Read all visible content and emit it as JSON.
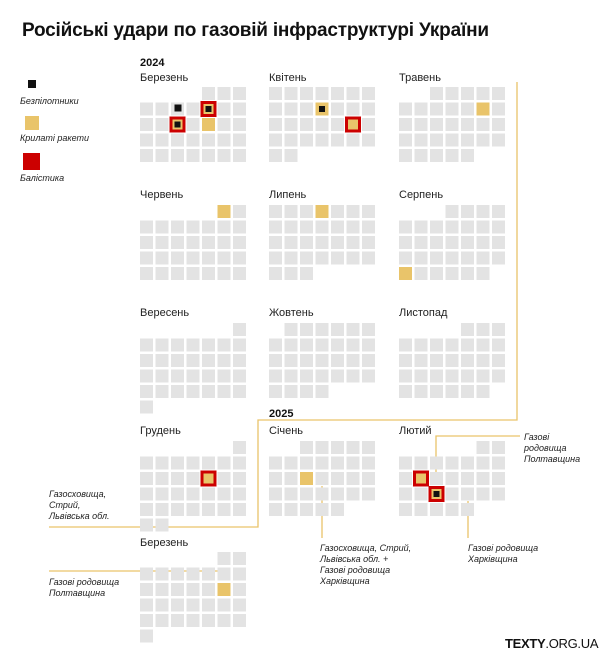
{
  "title": "Російські удари по газовій інфраструктурі України",
  "brand": {
    "bold": "TEXTY",
    "rest": ".ORG.UA"
  },
  "colors": {
    "empty": "#e3e3e3",
    "drone": "#111111",
    "cruise": "#e9c46a",
    "ballistic": "#cc0000",
    "line": "#e9c46a"
  },
  "legend": [
    {
      "type": "drone",
      "label": "Безпілотники"
    },
    {
      "type": "cruise",
      "label": "Крилаті ракети"
    },
    {
      "type": "ballistic",
      "label": "Балістика"
    }
  ],
  "years": [
    "2024",
    "2025"
  ],
  "chart_data": {
    "type": "calendar-grid",
    "title": "Російські удари по газовій інфраструктурі України",
    "months": [
      {
        "label": "Березень",
        "year": 2024,
        "start_weekday": 5,
        "days": 31,
        "events": [
          {
            "day": 8,
            "types": [
              "cruise",
              "ballistic",
              "drone"
            ]
          },
          {
            "day": 13,
            "types": [
              "ballistic",
              "drone"
            ]
          },
          {
            "day": 15,
            "types": [
              "cruise"
            ]
          }
        ]
      },
      {
        "label": "Квітень",
        "year": 2024,
        "start_weekday": 1,
        "days": 30,
        "events": [
          {
            "day": 11,
            "types": [
              "cruise",
              "drone"
            ]
          },
          {
            "day": 20,
            "types": [
              "cruise",
              "ballistic"
            ]
          }
        ]
      },
      {
        "label": "Травень",
        "year": 2024,
        "start_weekday": 3,
        "days": 31,
        "events": [
          {
            "day": 11,
            "types": [
              "cruise"
            ]
          }
        ]
      },
      {
        "label": "Червень",
        "year": 2024,
        "start_weekday": 6,
        "days": 30,
        "events": [
          {
            "day": 1,
            "types": [
              "cruise"
            ]
          }
        ]
      },
      {
        "label": "Липень",
        "year": 2024,
        "start_weekday": 1,
        "days": 31,
        "events": [
          {
            "day": 4,
            "types": [
              "cruise"
            ]
          }
        ]
      },
      {
        "label": "Серпень",
        "year": 2024,
        "start_weekday": 4,
        "days": 31,
        "events": [
          {
            "day": 26,
            "types": [
              "cruise"
            ]
          }
        ]
      },
      {
        "label": "Вересень",
        "year": 2024,
        "start_weekday": 7,
        "days": 30,
        "events": []
      },
      {
        "label": "Жовтень",
        "year": 2024,
        "start_weekday": 2,
        "days": 31,
        "events": []
      },
      {
        "label": "Листопад",
        "year": 2024,
        "start_weekday": 5,
        "days": 30,
        "events": []
      },
      {
        "label": "Грудень",
        "year": 2024,
        "start_weekday": 7,
        "days": 31,
        "events": [
          {
            "day": 13,
            "types": [
              "cruise",
              "ballistic"
            ]
          }
        ]
      },
      {
        "label": "Січень",
        "year": 2025,
        "start_weekday": 3,
        "days": 31,
        "events": [
          {
            "day": 15,
            "types": [
              "cruise"
            ]
          }
        ]
      },
      {
        "label": "Лютий",
        "year": 2025,
        "start_weekday": 6,
        "days": 28,
        "events": [
          {
            "day": 11,
            "types": [
              "cruise",
              "ballistic"
            ]
          },
          {
            "day": 19,
            "types": [
              "ballistic",
              "drone"
            ]
          }
        ]
      },
      {
        "label": "Березень",
        "year": 2025,
        "start_weekday": 6,
        "days": 31,
        "events": [
          {
            "day": 15,
            "types": [
              "cruise"
            ]
          }
        ]
      }
    ],
    "annotations": [
      {
        "text": "Газосховища,\nСтрий,\nЛьвівська обл.",
        "target": "Грудень 2024, 13"
      },
      {
        "text": "Газосховища, Стрий,\nЛьвівська обл. +\nГазові родовища\nХарківщина",
        "target": "Січень 2025, 15"
      },
      {
        "text": "Газові\nродовища\nПолтавщина",
        "target": "Лютий 2025, 11"
      },
      {
        "text": "Газові родовища\nХарківщина",
        "target": "Лютий 2025, 19"
      },
      {
        "text": "Газові родовища\nПолтавщина",
        "target": "Березень 2025, 15"
      }
    ]
  }
}
